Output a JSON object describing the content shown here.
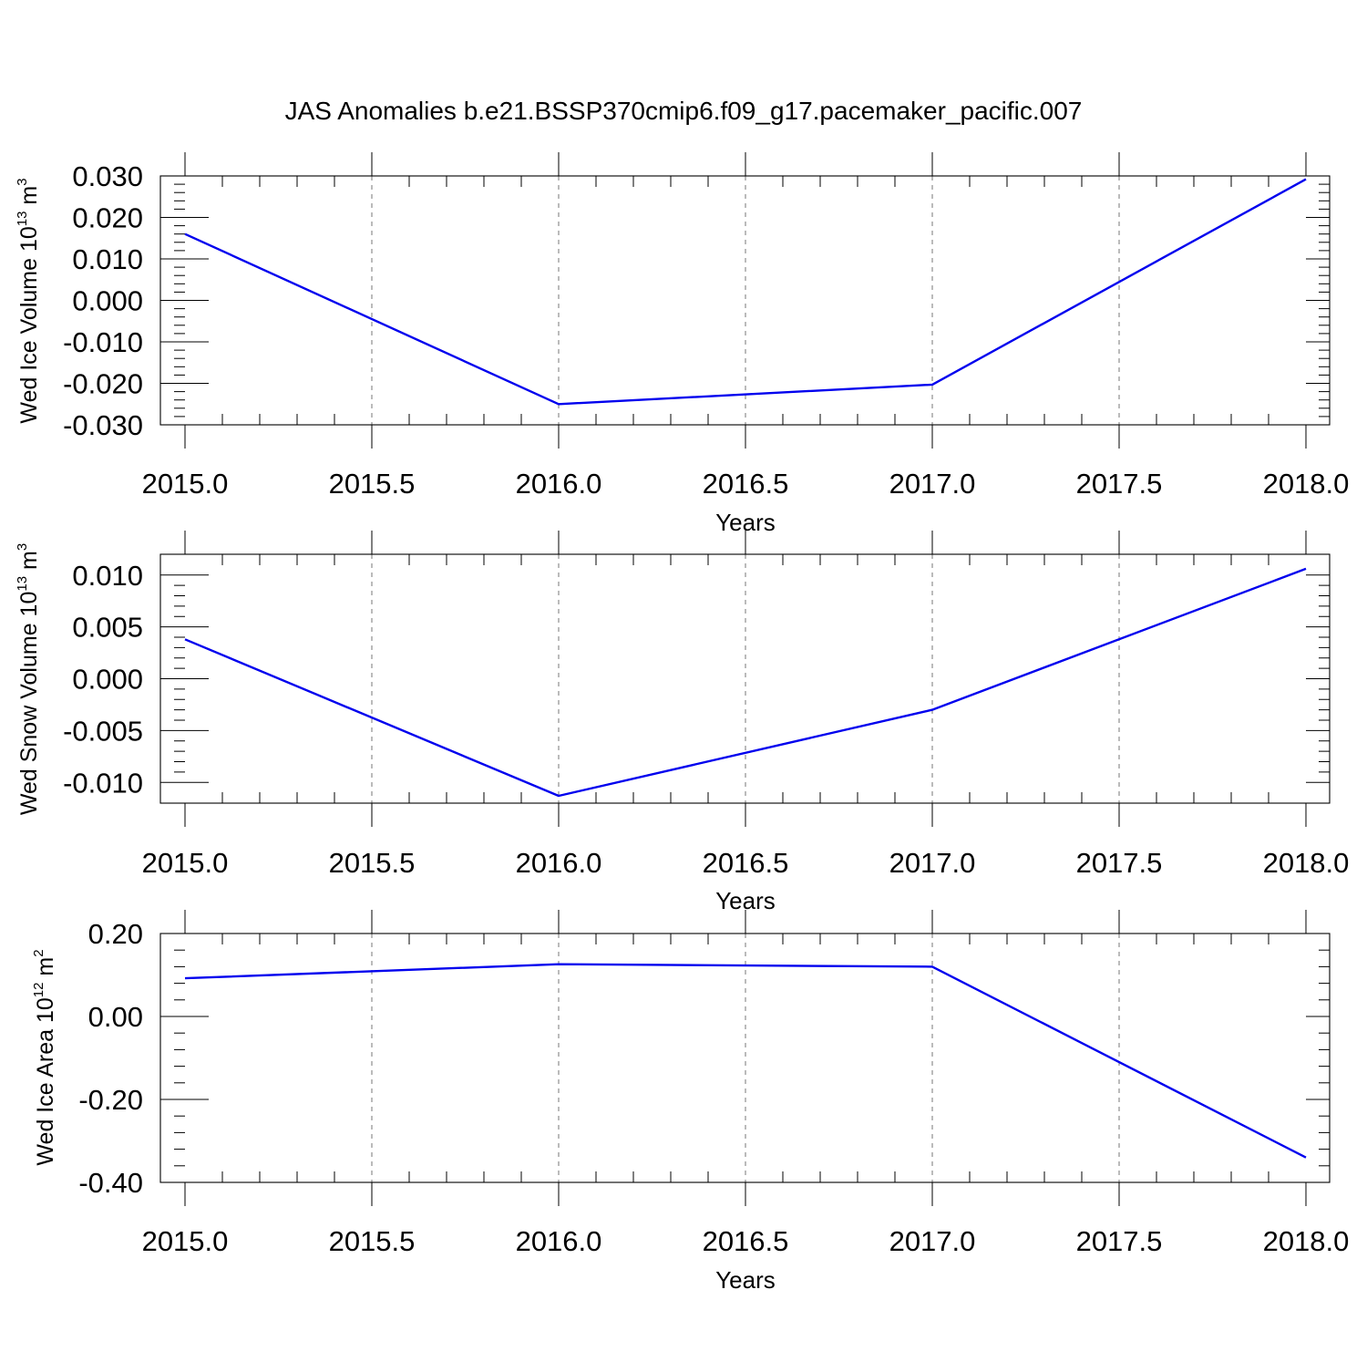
{
  "title": "JAS Anomalies b.e21.BSSP370cmip6.f09_g17.pacemaker_pacific.007",
  "colors": {
    "line": "#0000ee",
    "grid": "#777777",
    "axis": "#000000"
  },
  "chart_data": [
    {
      "type": "line",
      "xlabel": "Years",
      "ylabel": {
        "text": "Wed Ice Volume 10",
        "exponent": "13",
        "unit": " m",
        "unit_exponent": "3"
      },
      "x": [
        2015,
        2016,
        2017,
        2018
      ],
      "series": [
        {
          "values": [
            0.016,
            -0.025,
            -0.0203,
            0.0292
          ]
        }
      ],
      "xlim": [
        2015.0,
        2018.0
      ],
      "ylim": [
        -0.03,
        0.03
      ],
      "xticks": [
        {
          "v": 2015.0,
          "label": "2015.0"
        },
        {
          "v": 2015.5,
          "label": "2015.5"
        },
        {
          "v": 2016.0,
          "label": "2016.0"
        },
        {
          "v": 2016.5,
          "label": "2016.5"
        },
        {
          "v": 2017.0,
          "label": "2017.0"
        },
        {
          "v": 2017.5,
          "label": "2017.5"
        },
        {
          "v": 2018.0,
          "label": "2018.0"
        }
      ],
      "yticks": [
        {
          "v": 0.03,
          "label": "0.030"
        },
        {
          "v": 0.02,
          "label": "0.020"
        },
        {
          "v": 0.01,
          "label": "0.010"
        },
        {
          "v": 0.0,
          "label": "0.000"
        },
        {
          "v": -0.01,
          "label": "-0.010"
        },
        {
          "v": -0.02,
          "label": "-0.020"
        },
        {
          "v": -0.03,
          "label": "-0.030"
        }
      ],
      "grid": "x-dashed"
    },
    {
      "type": "line",
      "xlabel": "Years",
      "ylabel": {
        "text": "Wed Snow Volume 10",
        "exponent": "13",
        "unit": " m",
        "unit_exponent": "3"
      },
      "x": [
        2015,
        2016,
        2017,
        2018
      ],
      "series": [
        {
          "values": [
            0.0038,
            -0.0113,
            -0.003,
            0.0106
          ]
        }
      ],
      "xlim": [
        2015.0,
        2018.0
      ],
      "ylim": [
        -0.012,
        0.012
      ],
      "xticks": [
        {
          "v": 2015.0,
          "label": "2015.0"
        },
        {
          "v": 2015.5,
          "label": "2015.5"
        },
        {
          "v": 2016.0,
          "label": "2016.0"
        },
        {
          "v": 2016.5,
          "label": "2016.5"
        },
        {
          "v": 2017.0,
          "label": "2017.0"
        },
        {
          "v": 2017.5,
          "label": "2017.5"
        },
        {
          "v": 2018.0,
          "label": "2018.0"
        }
      ],
      "yticks": [
        {
          "v": 0.01,
          "label": "0.010"
        },
        {
          "v": 0.005,
          "label": "0.005"
        },
        {
          "v": 0.0,
          "label": "0.000"
        },
        {
          "v": -0.005,
          "label": "-0.005"
        },
        {
          "v": -0.01,
          "label": "-0.010"
        }
      ],
      "grid": "x-dashed"
    },
    {
      "type": "line",
      "xlabel": "Years",
      "ylabel": {
        "text": "Wed Ice Area 10",
        "exponent": "12",
        "unit": " m",
        "unit_exponent": "2"
      },
      "x": [
        2015,
        2016,
        2017,
        2018
      ],
      "series": [
        {
          "values": [
            0.092,
            0.126,
            0.12,
            -0.34
          ]
        }
      ],
      "xlim": [
        2015.0,
        2018.0
      ],
      "ylim": [
        -0.4,
        0.2
      ],
      "xticks": [
        {
          "v": 2015.0,
          "label": "2015.0"
        },
        {
          "v": 2015.5,
          "label": "2015.5"
        },
        {
          "v": 2016.0,
          "label": "2016.0"
        },
        {
          "v": 2016.5,
          "label": "2016.5"
        },
        {
          "v": 2017.0,
          "label": "2017.0"
        },
        {
          "v": 2017.5,
          "label": "2017.5"
        },
        {
          "v": 2018.0,
          "label": "2018.0"
        }
      ],
      "yticks": [
        {
          "v": 0.2,
          "label": "0.20"
        },
        {
          "v": 0.0,
          "label": "0.00"
        },
        {
          "v": -0.2,
          "label": "-0.20"
        },
        {
          "v": -0.4,
          "label": "-0.40"
        }
      ],
      "grid": "x-dashed"
    }
  ]
}
